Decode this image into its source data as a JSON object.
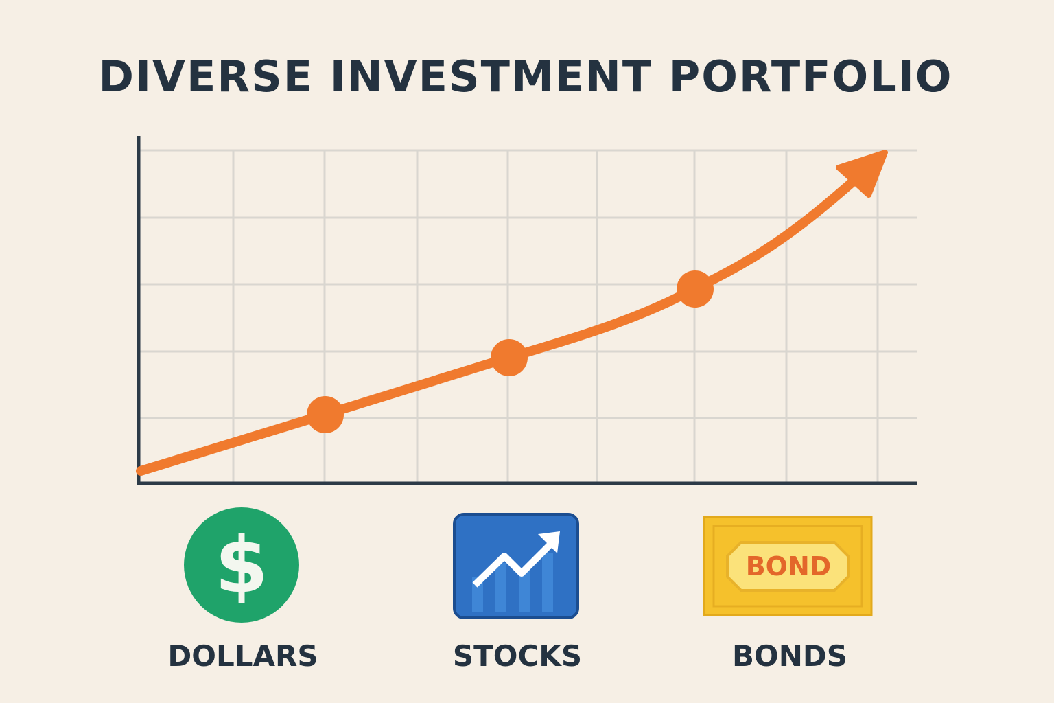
{
  "header": {
    "title": "DIVERSE INVESTMENT PORTFOLIO"
  },
  "icons": [
    {
      "symbol": "$",
      "label": "DOLLARS"
    },
    {
      "label": "STOCKS"
    },
    {
      "symbol": "BOND",
      "label": "BONDS"
    }
  ]
}
